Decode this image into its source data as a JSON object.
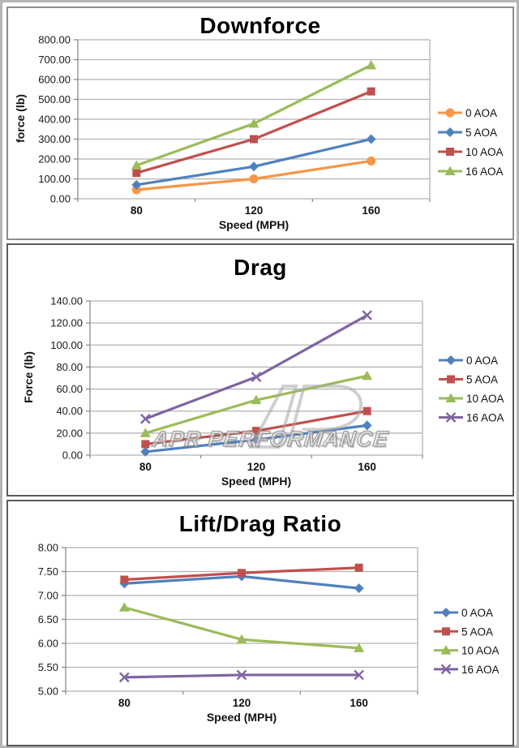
{
  "page": {
    "watermark": {
      "text": "APR PERFORMANCE"
    }
  },
  "style": {
    "grid_color": "#b2b2b2",
    "axis_color": "#8c8c8c",
    "series_palette": {
      "orange": "#F79646",
      "blue": "#4F81BD",
      "red": "#C0504D",
      "green": "#9BBB59",
      "purple": "#8064A2"
    }
  },
  "chart_data": [
    {
      "type": "line",
      "title": "Downforce",
      "xlabel": "Speed (MPH)",
      "ylabel": "force (lb)",
      "categories": [
        "80",
        "120",
        "160"
      ],
      "ylim": [
        0,
        800
      ],
      "ystep": 100,
      "ytick_decimals": 2,
      "grid": true,
      "legend_position": "right",
      "series": [
        {
          "name": "0 AOA",
          "marker": "circle",
          "color": "#F79646",
          "values": [
            45,
            100,
            190
          ]
        },
        {
          "name": "5 AOA",
          "marker": "diamond",
          "color": "#4F81BD",
          "values": [
            70,
            162,
            300
          ]
        },
        {
          "name": "10 AOA",
          "marker": "square",
          "color": "#C0504D",
          "values": [
            130,
            300,
            540
          ]
        },
        {
          "name": "16 AOA",
          "marker": "triangle",
          "color": "#9BBB59",
          "values": [
            168,
            378,
            672
          ]
        }
      ]
    },
    {
      "type": "line",
      "title": "Drag",
      "xlabel": "Speed (MPH)",
      "ylabel": "Force (lb)",
      "categories": [
        "80",
        "120",
        "160"
      ],
      "ylim": [
        0,
        140
      ],
      "ystep": 20,
      "ytick_decimals": 2,
      "grid": true,
      "legend_position": "right",
      "series": [
        {
          "name": "0 AOA",
          "marker": "diamond",
          "color": "#4F81BD",
          "values": [
            3,
            14,
            27
          ]
        },
        {
          "name": "5 AOA",
          "marker": "square",
          "color": "#C0504D",
          "values": [
            10,
            22,
            40
          ]
        },
        {
          "name": "10 AOA",
          "marker": "triangle",
          "color": "#9BBB59",
          "values": [
            20,
            50,
            72
          ]
        },
        {
          "name": "16 AOA",
          "marker": "x",
          "color": "#8064A2",
          "values": [
            33,
            71,
            127
          ]
        }
      ]
    },
    {
      "type": "line",
      "title": "Lift/Drag Ratio",
      "xlabel": "Speed (MPH)",
      "ylabel": "",
      "categories": [
        "80",
        "120",
        "160"
      ],
      "ylim": [
        5,
        8
      ],
      "ystep": 0.5,
      "ytick_decimals": 2,
      "grid": true,
      "legend_position": "right",
      "series": [
        {
          "name": "0 AOA",
          "marker": "diamond",
          "color": "#4F81BD",
          "values": [
            7.25,
            7.4,
            7.15
          ]
        },
        {
          "name": "5 AOA",
          "marker": "square",
          "color": "#C0504D",
          "values": [
            7.33,
            7.47,
            7.58
          ]
        },
        {
          "name": "10 AOA",
          "marker": "triangle",
          "color": "#9BBB59",
          "values": [
            6.75,
            6.08,
            5.9
          ]
        },
        {
          "name": "16 AOA",
          "marker": "x",
          "color": "#8064A2",
          "values": [
            5.29,
            5.34,
            5.34
          ]
        }
      ]
    }
  ]
}
